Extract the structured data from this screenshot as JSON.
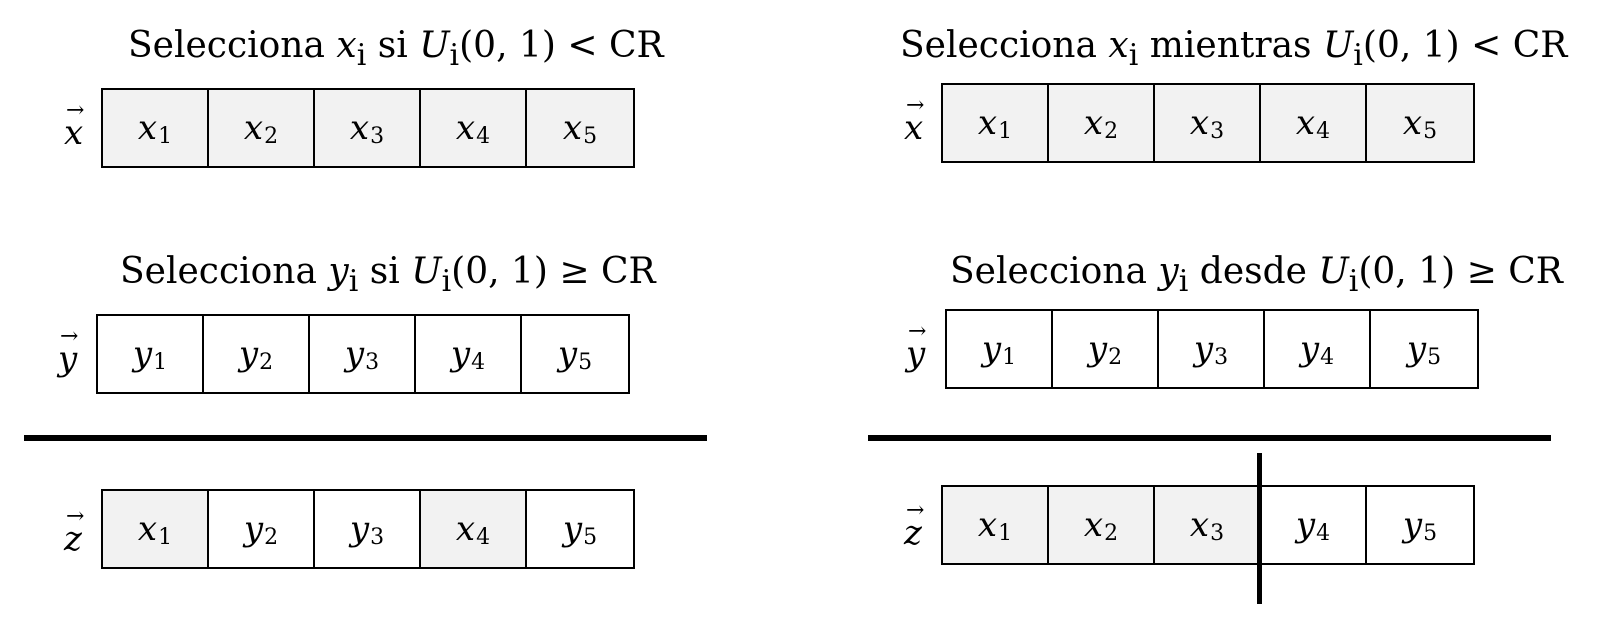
{
  "left": {
    "title_x": {
      "pre": "Selecciona ",
      "var": "x",
      "sub": "i",
      "mid": " si ",
      "cond": "U",
      "cond_sub": "i",
      "cond_rest": "(0, 1) < CR"
    },
    "title_y": {
      "pre": "Selecciona ",
      "var": "y",
      "sub": "i",
      "mid": " si ",
      "cond": "U",
      "cond_sub": "i",
      "cond_rest": "(0, 1) ≥ CR"
    },
    "vec_x": "x",
    "vec_y": "y",
    "vec_z": "z",
    "row_x": [
      {
        "v": "x",
        "i": "1"
      },
      {
        "v": "x",
        "i": "2"
      },
      {
        "v": "x",
        "i": "3"
      },
      {
        "v": "x",
        "i": "4"
      },
      {
        "v": "x",
        "i": "5"
      }
    ],
    "row_y": [
      {
        "v": "y",
        "i": "1"
      },
      {
        "v": "y",
        "i": "2"
      },
      {
        "v": "y",
        "i": "3"
      },
      {
        "v": "y",
        "i": "4"
      },
      {
        "v": "y",
        "i": "5"
      }
    ],
    "row_z": [
      {
        "v": "x",
        "i": "1"
      },
      {
        "v": "y",
        "i": "2"
      },
      {
        "v": "y",
        "i": "3"
      },
      {
        "v": "x",
        "i": "4"
      },
      {
        "v": "y",
        "i": "5"
      }
    ]
  },
  "right": {
    "title_x": {
      "pre": "Selecciona ",
      "var": "x",
      "sub": "i",
      "mid": " mientras ",
      "cond": "U",
      "cond_sub": "i",
      "cond_rest": "(0, 1) < CR"
    },
    "title_y": {
      "pre": "Selecciona ",
      "var": "y",
      "sub": "i",
      "mid": " desde ",
      "cond": "U",
      "cond_sub": "i",
      "cond_rest": "(0, 1) ≥ CR"
    },
    "vec_x": "x",
    "vec_y": "y",
    "vec_z": "z",
    "row_x": [
      {
        "v": "x",
        "i": "1"
      },
      {
        "v": "x",
        "i": "2"
      },
      {
        "v": "x",
        "i": "3"
      },
      {
        "v": "x",
        "i": "4"
      },
      {
        "v": "x",
        "i": "5"
      }
    ],
    "row_y": [
      {
        "v": "y",
        "i": "1"
      },
      {
        "v": "y",
        "i": "2"
      },
      {
        "v": "y",
        "i": "3"
      },
      {
        "v": "y",
        "i": "4"
      },
      {
        "v": "y",
        "i": "5"
      }
    ],
    "row_z": [
      {
        "v": "x",
        "i": "1"
      },
      {
        "v": "x",
        "i": "2"
      },
      {
        "v": "x",
        "i": "3"
      },
      {
        "v": "y",
        "i": "4"
      },
      {
        "v": "y",
        "i": "5"
      }
    ]
  },
  "colors": {
    "x_cell_fill": "#f2f2f2",
    "y_cell_fill": "#ffffff",
    "line": "#000000"
  }
}
